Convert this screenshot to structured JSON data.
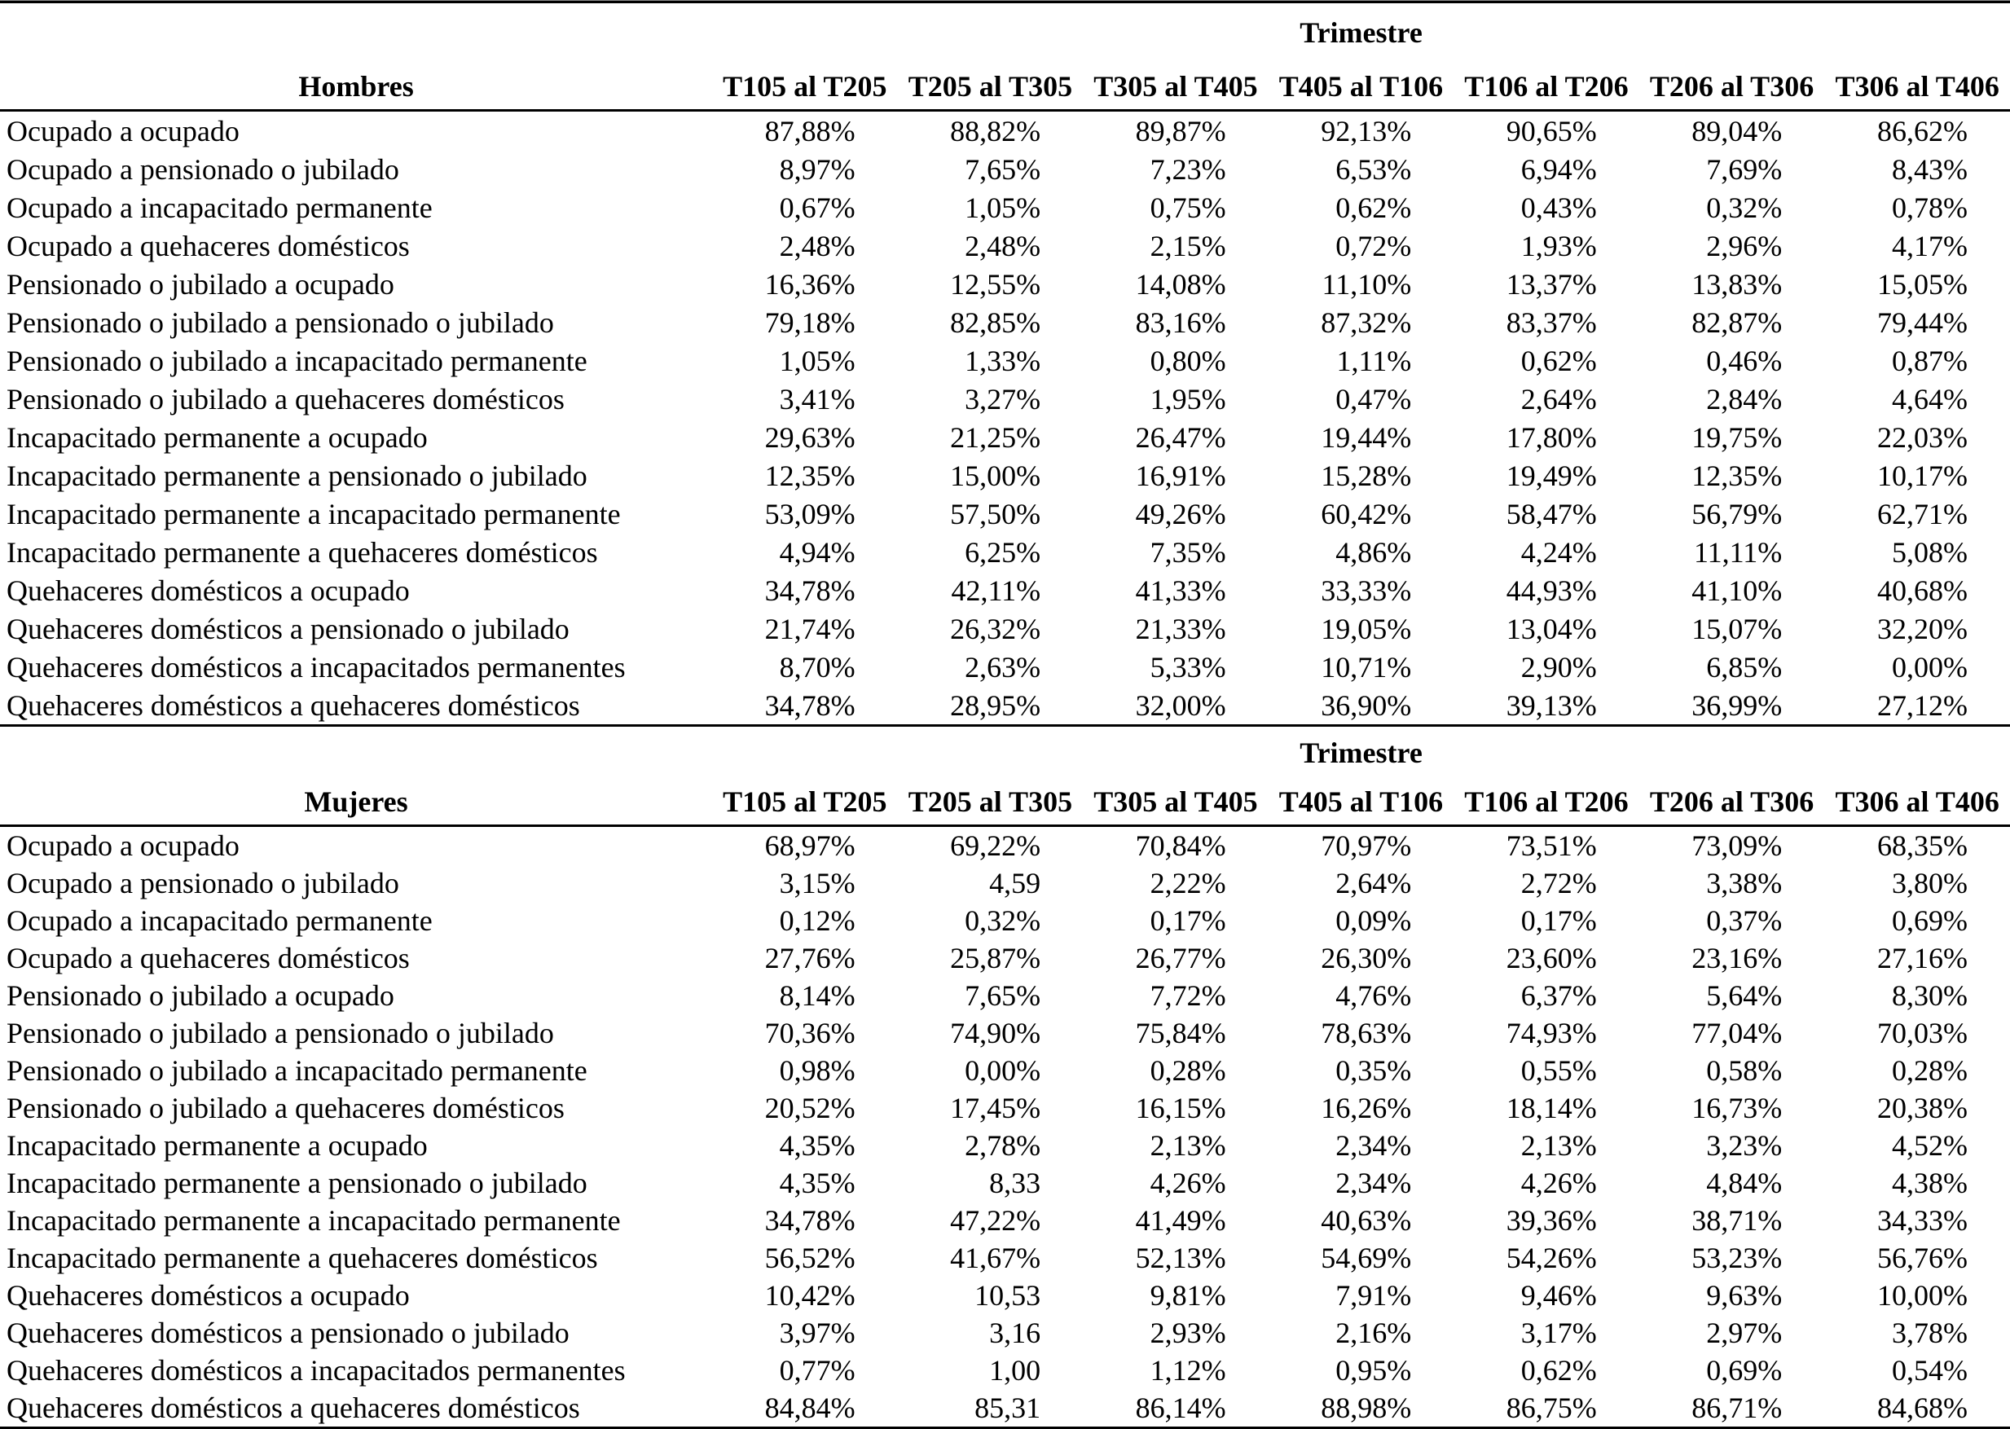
{
  "colors": {
    "background": "#ffffff",
    "text": "#000000",
    "rule": "#000000"
  },
  "tables": [
    {
      "group_header": "Trimestre",
      "row_header": "Hombres",
      "columns": [
        "T105 al T205",
        "T205 al T305",
        "T305 al T405",
        "T405 al T106",
        "T106 al T206",
        "T206 al T306",
        "T306 al T406"
      ],
      "rows": [
        {
          "label": "Ocupado a ocupado",
          "values": [
            "87,88%",
            "88,82%",
            "89,87%",
            "92,13%",
            "90,65%",
            "89,04%",
            "86,62%"
          ]
        },
        {
          "label": "Ocupado a pensionado o jubilado",
          "values": [
            "8,97%",
            "7,65%",
            "7,23%",
            "6,53%",
            "6,94%",
            "7,69%",
            "8,43%"
          ]
        },
        {
          "label": "Ocupado a incapacitado permanente",
          "values": [
            "0,67%",
            "1,05%",
            "0,75%",
            "0,62%",
            "0,43%",
            "0,32%",
            "0,78%"
          ]
        },
        {
          "label": "Ocupado a quehaceres domésticos",
          "values": [
            "2,48%",
            "2,48%",
            "2,15%",
            "0,72%",
            "1,93%",
            "2,96%",
            "4,17%"
          ]
        },
        {
          "label": "Pensionado o jubilado a ocupado",
          "values": [
            "16,36%",
            "12,55%",
            "14,08%",
            "11,10%",
            "13,37%",
            "13,83%",
            "15,05%"
          ]
        },
        {
          "label": "Pensionado o jubilado a pensionado o jubilado",
          "values": [
            "79,18%",
            "82,85%",
            "83,16%",
            "87,32%",
            "83,37%",
            "82,87%",
            "79,44%"
          ]
        },
        {
          "label": "Pensionado o jubilado a incapacitado permanente",
          "values": [
            "1,05%",
            "1,33%",
            "0,80%",
            "1,11%",
            "0,62%",
            "0,46%",
            "0,87%"
          ]
        },
        {
          "label": "Pensionado o jubilado a quehaceres domésticos",
          "values": [
            "3,41%",
            "3,27%",
            "1,95%",
            "0,47%",
            "2,64%",
            "2,84%",
            "4,64%"
          ]
        },
        {
          "label": "Incapacitado permanente a ocupado",
          "values": [
            "29,63%",
            "21,25%",
            "26,47%",
            "19,44%",
            "17,80%",
            "19,75%",
            "22,03%"
          ]
        },
        {
          "label": "Incapacitado permanente a pensionado o jubilado",
          "values": [
            "12,35%",
            "15,00%",
            "16,91%",
            "15,28%",
            "19,49%",
            "12,35%",
            "10,17%"
          ]
        },
        {
          "label": "Incapacitado permanente a incapacitado permanente",
          "values": [
            "53,09%",
            "57,50%",
            "49,26%",
            "60,42%",
            "58,47%",
            "56,79%",
            "62,71%"
          ]
        },
        {
          "label": "Incapacitado permanente a quehaceres domésticos",
          "values": [
            "4,94%",
            "6,25%",
            "7,35%",
            "4,86%",
            "4,24%",
            "11,11%",
            "5,08%"
          ]
        },
        {
          "label": "Quehaceres domésticos a ocupado",
          "values": [
            "34,78%",
            "42,11%",
            "41,33%",
            "33,33%",
            "44,93%",
            "41,10%",
            "40,68%"
          ]
        },
        {
          "label": "Quehaceres domésticos a pensionado o jubilado",
          "values": [
            "21,74%",
            "26,32%",
            "21,33%",
            "19,05%",
            "13,04%",
            "15,07%",
            "32,20%"
          ]
        },
        {
          "label": "Quehaceres domésticos a incapacitados permanentes",
          "values": [
            "8,70%",
            "2,63%",
            "5,33%",
            "10,71%",
            "2,90%",
            "6,85%",
            "0,00%"
          ]
        },
        {
          "label": "Quehaceres domésticos a quehaceres domésticos",
          "values": [
            "34,78%",
            "28,95%",
            "32,00%",
            "36,90%",
            "39,13%",
            "36,99%",
            "27,12%"
          ]
        }
      ]
    },
    {
      "group_header": "Trimestre",
      "row_header": "Mujeres",
      "columns": [
        "T105 al T205",
        "T205 al T305",
        "T305 al T405",
        "T405 al T106",
        "T106 al T206",
        "T206 al T306",
        "T306 al T406"
      ],
      "rows": [
        {
          "label": "Ocupado a ocupado",
          "values": [
            "68,97%",
            "69,22%",
            "70,84%",
            "70,97%",
            "73,51%",
            "73,09%",
            "68,35%"
          ]
        },
        {
          "label": "Ocupado a pensionado o jubilado",
          "values": [
            "3,15%",
            "4,59",
            "2,22%",
            "2,64%",
            "2,72%",
            "3,38%",
            "3,80%"
          ]
        },
        {
          "label": "Ocupado a incapacitado permanente",
          "values": [
            "0,12%",
            "0,32%",
            "0,17%",
            "0,09%",
            "0,17%",
            "0,37%",
            "0,69%"
          ]
        },
        {
          "label": "Ocupado a quehaceres domésticos",
          "values": [
            "27,76%",
            "25,87%",
            "26,77%",
            "26,30%",
            "23,60%",
            "23,16%",
            "27,16%"
          ]
        },
        {
          "label": "Pensionado o jubilado a ocupado",
          "values": [
            "8,14%",
            "7,65%",
            "7,72%",
            "4,76%",
            "6,37%",
            "5,64%",
            "8,30%"
          ]
        },
        {
          "label": "Pensionado o jubilado a pensionado o jubilado",
          "values": [
            "70,36%",
            "74,90%",
            "75,84%",
            "78,63%",
            "74,93%",
            "77,04%",
            "70,03%"
          ]
        },
        {
          "label": "Pensionado o jubilado a incapacitado permanente",
          "values": [
            "0,98%",
            "0,00%",
            "0,28%",
            "0,35%",
            "0,55%",
            "0,58%",
            "0,28%"
          ]
        },
        {
          "label": "Pensionado o jubilado a quehaceres domésticos",
          "values": [
            "20,52%",
            "17,45%",
            "16,15%",
            "16,26%",
            "18,14%",
            "16,73%",
            "20,38%"
          ]
        },
        {
          "label": "Incapacitado permanente a ocupado",
          "values": [
            "4,35%",
            "2,78%",
            "2,13%",
            "2,34%",
            "2,13%",
            "3,23%",
            "4,52%"
          ]
        },
        {
          "label": "Incapacitado permanente a pensionado o jubilado",
          "values": [
            "4,35%",
            "8,33",
            "4,26%",
            "2,34%",
            "4,26%",
            "4,84%",
            "4,38%"
          ]
        },
        {
          "label": "Incapacitado permanente a incapacitado permanente",
          "values": [
            "34,78%",
            "47,22%",
            "41,49%",
            "40,63%",
            "39,36%",
            "38,71%",
            "34,33%"
          ]
        },
        {
          "label": "Incapacitado permanente a quehaceres domésticos",
          "values": [
            "56,52%",
            "41,67%",
            "52,13%",
            "54,69%",
            "54,26%",
            "53,23%",
            "56,76%"
          ]
        },
        {
          "label": "Quehaceres domésticos a ocupado",
          "values": [
            "10,42%",
            "10,53",
            "9,81%",
            "7,91%",
            "9,46%",
            "9,63%",
            "10,00%"
          ]
        },
        {
          "label": "Quehaceres domésticos a pensionado o jubilado",
          "values": [
            "3,97%",
            "3,16",
            "2,93%",
            "2,16%",
            "3,17%",
            "2,97%",
            "3,78%"
          ]
        },
        {
          "label": "Quehaceres domésticos a incapacitados permanentes",
          "values": [
            "0,77%",
            "1,00",
            "1,12%",
            "0,95%",
            "0,62%",
            "0,69%",
            "0,54%"
          ]
        },
        {
          "label": "Quehaceres domésticos a quehaceres domésticos",
          "values": [
            "84,84%",
            "85,31",
            "86,14%",
            "88,98%",
            "86,75%",
            "86,71%",
            "84,68%"
          ]
        }
      ]
    }
  ]
}
